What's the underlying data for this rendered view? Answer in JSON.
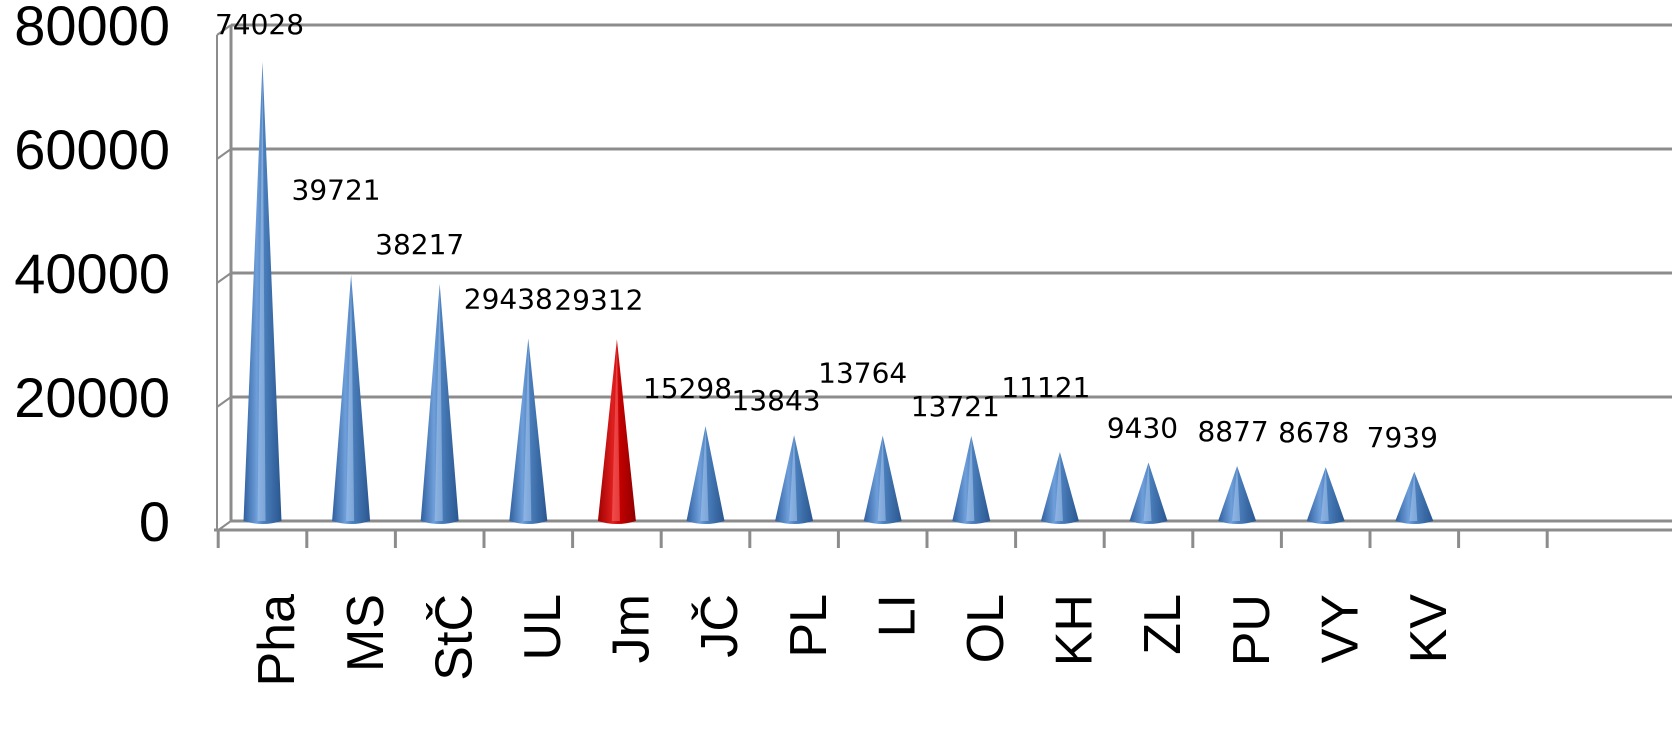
{
  "chart_data": {
    "type": "bar",
    "shape": "cone",
    "title": "",
    "xlabel": "",
    "ylabel": "",
    "categories": [
      "Pha",
      "MS",
      "StČ",
      "UL",
      "Jm",
      "JČ",
      "PL",
      "LI",
      "OL",
      "KH",
      "ZL",
      "PU",
      "VY",
      "KV"
    ],
    "values": [
      74028,
      39721,
      38217,
      29438,
      29312,
      15298,
      13843,
      13764,
      13721,
      11121,
      9430,
      8877,
      8678,
      7939
    ],
    "data_labels": [
      "74028",
      "39721",
      "38217",
      "29438",
      "29312",
      "15298",
      "13843",
      "13764",
      "13721",
      "11121",
      "9430",
      "8877",
      "8678",
      "7939"
    ],
    "ylim": [
      0,
      80000
    ],
    "yticks": [
      "0",
      "20000",
      "40000",
      "60000",
      "80000"
    ],
    "grid": true,
    "legend": "none",
    "colors": {
      "default": "#4a7ebb",
      "highlight": "#c00000",
      "grid": "#8c8c8c"
    },
    "highlight_category": "Jm"
  }
}
